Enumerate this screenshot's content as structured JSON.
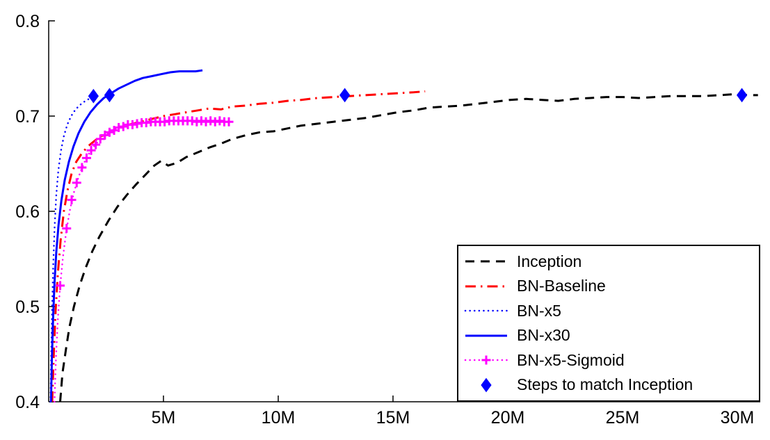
{
  "chart_data": {
    "type": "line",
    "title": "",
    "xlabel": "",
    "ylabel": "",
    "x_units": "millions of training steps",
    "xlim": [
      0,
      31
    ],
    "ylim": [
      0.4,
      0.8
    ],
    "grid": false,
    "background": "#ffffff",
    "axis_color": "#000000",
    "legend_position": "lower right",
    "xticks": [
      {
        "value": 5,
        "label": "5M"
      },
      {
        "value": 10,
        "label": "10M"
      },
      {
        "value": 15,
        "label": "15M"
      },
      {
        "value": 20,
        "label": "20M"
      },
      {
        "value": 25,
        "label": "25M"
      },
      {
        "value": 30,
        "label": "30M"
      }
    ],
    "yticks": [
      {
        "value": 0.4,
        "label": "0.4"
      },
      {
        "value": 0.5,
        "label": "0.5"
      },
      {
        "value": 0.6,
        "label": "0.6"
      },
      {
        "value": 0.7,
        "label": "0.7"
      },
      {
        "value": 0.8,
        "label": "0.8"
      }
    ],
    "series": [
      {
        "name": "Inception",
        "color": "#000000",
        "style": "dashed",
        "line_width": 3,
        "points": [
          [
            0.5,
            0.4
          ],
          [
            0.6,
            0.43
          ],
          [
            0.75,
            0.455
          ],
          [
            0.9,
            0.478
          ],
          [
            1.1,
            0.5
          ],
          [
            1.35,
            0.522
          ],
          [
            1.6,
            0.54
          ],
          [
            1.9,
            0.558
          ],
          [
            2.2,
            0.573
          ],
          [
            2.6,
            0.59
          ],
          [
            3.0,
            0.605
          ],
          [
            3.4,
            0.617
          ],
          [
            3.8,
            0.628
          ],
          [
            4.2,
            0.638
          ],
          [
            4.6,
            0.648
          ],
          [
            4.9,
            0.653
          ],
          [
            5.2,
            0.648
          ],
          [
            5.6,
            0.651
          ],
          [
            6.0,
            0.657
          ],
          [
            6.5,
            0.662
          ],
          [
            7.0,
            0.667
          ],
          [
            7.5,
            0.671
          ],
          [
            8.0,
            0.676
          ],
          [
            8.6,
            0.68
          ],
          [
            9.2,
            0.683
          ],
          [
            9.8,
            0.684
          ],
          [
            10.4,
            0.687
          ],
          [
            11.0,
            0.69
          ],
          [
            11.7,
            0.692
          ],
          [
            12.4,
            0.694
          ],
          [
            13.1,
            0.696
          ],
          [
            13.8,
            0.698
          ],
          [
            14.5,
            0.701
          ],
          [
            15.2,
            0.704
          ],
          [
            15.9,
            0.706
          ],
          [
            16.6,
            0.709
          ],
          [
            17.3,
            0.71
          ],
          [
            18.0,
            0.711
          ],
          [
            18.7,
            0.713
          ],
          [
            19.4,
            0.715
          ],
          [
            20.1,
            0.717
          ],
          [
            20.8,
            0.718
          ],
          [
            21.5,
            0.717
          ],
          [
            22.2,
            0.716
          ],
          [
            22.9,
            0.718
          ],
          [
            23.6,
            0.719
          ],
          [
            24.3,
            0.72
          ],
          [
            25.0,
            0.72
          ],
          [
            25.7,
            0.719
          ],
          [
            26.4,
            0.72
          ],
          [
            27.1,
            0.721
          ],
          [
            27.8,
            0.721
          ],
          [
            28.5,
            0.721
          ],
          [
            29.2,
            0.722
          ],
          [
            29.9,
            0.723
          ],
          [
            30.5,
            0.722
          ],
          [
            30.9,
            0.722
          ]
        ]
      },
      {
        "name": "BN-Baseline",
        "color": "#ff0000",
        "style": "dashdot",
        "line_width": 3,
        "points": [
          [
            0.15,
            0.4
          ],
          [
            0.22,
            0.45
          ],
          [
            0.3,
            0.495
          ],
          [
            0.4,
            0.535
          ],
          [
            0.52,
            0.57
          ],
          [
            0.66,
            0.6
          ],
          [
            0.82,
            0.622
          ],
          [
            1.0,
            0.64
          ],
          [
            1.2,
            0.652
          ],
          [
            1.45,
            0.661
          ],
          [
            1.7,
            0.668
          ],
          [
            2.0,
            0.674
          ],
          [
            2.3,
            0.679
          ],
          [
            2.7,
            0.684
          ],
          [
            3.1,
            0.688
          ],
          [
            3.5,
            0.691
          ],
          [
            4.0,
            0.694
          ],
          [
            4.5,
            0.697
          ],
          [
            5.0,
            0.7
          ],
          [
            5.5,
            0.702
          ],
          [
            6.0,
            0.704
          ],
          [
            6.5,
            0.706
          ],
          [
            7.0,
            0.708
          ],
          [
            7.5,
            0.707
          ],
          [
            8.0,
            0.71
          ],
          [
            8.6,
            0.711
          ],
          [
            9.2,
            0.713
          ],
          [
            9.8,
            0.714
          ],
          [
            10.4,
            0.716
          ],
          [
            11.0,
            0.717
          ],
          [
            11.7,
            0.719
          ],
          [
            12.4,
            0.72
          ],
          [
            13.1,
            0.721
          ],
          [
            13.8,
            0.722
          ],
          [
            14.5,
            0.723
          ],
          [
            15.2,
            0.724
          ],
          [
            15.9,
            0.725
          ],
          [
            16.4,
            0.726
          ]
        ]
      },
      {
        "name": "BN-x5",
        "color": "#0000ff",
        "style": "dotted",
        "line_width": 2.5,
        "points": [
          [
            0.08,
            0.4
          ],
          [
            0.11,
            0.45
          ],
          [
            0.15,
            0.5
          ],
          [
            0.2,
            0.545
          ],
          [
            0.26,
            0.585
          ],
          [
            0.33,
            0.617
          ],
          [
            0.42,
            0.643
          ],
          [
            0.53,
            0.663
          ],
          [
            0.66,
            0.679
          ],
          [
            0.81,
            0.691
          ],
          [
            0.98,
            0.7
          ],
          [
            1.17,
            0.707
          ],
          [
            1.38,
            0.712
          ],
          [
            1.6,
            0.716
          ],
          [
            1.83,
            0.719
          ],
          [
            2.05,
            0.721
          ]
        ]
      },
      {
        "name": "BN-x30",
        "color": "#0000ff",
        "style": "solid",
        "line_width": 3,
        "points": [
          [
            0.1,
            0.4
          ],
          [
            0.14,
            0.445
          ],
          [
            0.19,
            0.487
          ],
          [
            0.25,
            0.524
          ],
          [
            0.33,
            0.557
          ],
          [
            0.43,
            0.586
          ],
          [
            0.55,
            0.611
          ],
          [
            0.7,
            0.633
          ],
          [
            0.88,
            0.652
          ],
          [
            1.08,
            0.668
          ],
          [
            1.3,
            0.682
          ],
          [
            1.55,
            0.694
          ],
          [
            1.82,
            0.704
          ],
          [
            2.1,
            0.712
          ],
          [
            2.4,
            0.719
          ],
          [
            2.72,
            0.724
          ],
          [
            3.05,
            0.729
          ],
          [
            3.4,
            0.733
          ],
          [
            3.75,
            0.737
          ],
          [
            4.1,
            0.74
          ],
          [
            4.5,
            0.742
          ],
          [
            4.9,
            0.744
          ],
          [
            5.3,
            0.746
          ],
          [
            5.7,
            0.747
          ],
          [
            6.1,
            0.747
          ],
          [
            6.4,
            0.747
          ],
          [
            6.7,
            0.748
          ]
        ]
      },
      {
        "name": "BN-x5-Sigmoid",
        "color": "#ff00ff",
        "style": "dotted",
        "line_width": 2.5,
        "marker": "plus",
        "points": [
          [
            0.25,
            0.4
          ],
          [
            0.32,
            0.448
          ],
          [
            0.4,
            0.487
          ],
          [
            0.5,
            0.522
          ],
          [
            0.62,
            0.552
          ],
          [
            0.76,
            0.578
          ],
          [
            0.92,
            0.601
          ],
          [
            1.1,
            0.62
          ],
          [
            1.3,
            0.636
          ],
          [
            1.52,
            0.65
          ],
          [
            1.74,
            0.66
          ],
          [
            1.96,
            0.668
          ],
          [
            2.18,
            0.674
          ],
          [
            2.4,
            0.679
          ],
          [
            2.62,
            0.682
          ],
          [
            2.84,
            0.685
          ],
          [
            3.06,
            0.688
          ],
          [
            3.28,
            0.689
          ],
          [
            3.5,
            0.691
          ],
          [
            3.72,
            0.692
          ],
          [
            3.94,
            0.692
          ],
          [
            4.16,
            0.693
          ],
          [
            4.38,
            0.693
          ],
          [
            4.6,
            0.694
          ],
          [
            4.82,
            0.694
          ],
          [
            5.04,
            0.694
          ],
          [
            5.26,
            0.695
          ],
          [
            5.48,
            0.695
          ],
          [
            5.7,
            0.695
          ],
          [
            5.92,
            0.695
          ],
          [
            6.14,
            0.695
          ],
          [
            6.36,
            0.695
          ],
          [
            6.58,
            0.694
          ],
          [
            6.8,
            0.695
          ],
          [
            7.02,
            0.694
          ],
          [
            7.24,
            0.695
          ],
          [
            7.46,
            0.694
          ],
          [
            7.68,
            0.695
          ],
          [
            7.9,
            0.694
          ]
        ],
        "marker_points": [
          [
            0.5,
            0.522
          ],
          [
            0.78,
            0.582
          ],
          [
            1.0,
            0.612
          ],
          [
            1.22,
            0.63
          ],
          [
            1.45,
            0.646
          ],
          [
            1.65,
            0.656
          ],
          [
            1.85,
            0.664
          ],
          [
            2.05,
            0.67
          ],
          [
            2.25,
            0.676
          ],
          [
            2.45,
            0.68
          ],
          [
            2.65,
            0.683
          ],
          [
            2.85,
            0.685
          ],
          [
            3.05,
            0.688
          ],
          [
            3.25,
            0.689
          ],
          [
            3.45,
            0.691
          ],
          [
            3.65,
            0.691
          ],
          [
            3.85,
            0.692
          ],
          [
            4.05,
            0.693
          ],
          [
            4.25,
            0.693
          ],
          [
            4.45,
            0.694
          ],
          [
            4.65,
            0.694
          ],
          [
            4.85,
            0.694
          ],
          [
            5.05,
            0.694
          ],
          [
            5.25,
            0.695
          ],
          [
            5.45,
            0.695
          ],
          [
            5.65,
            0.695
          ],
          [
            5.85,
            0.695
          ],
          [
            6.05,
            0.695
          ],
          [
            6.25,
            0.695
          ],
          [
            6.45,
            0.694
          ],
          [
            6.65,
            0.695
          ],
          [
            6.85,
            0.694
          ],
          [
            7.05,
            0.695
          ],
          [
            7.25,
            0.694
          ],
          [
            7.45,
            0.695
          ],
          [
            7.65,
            0.694
          ],
          [
            7.85,
            0.694
          ]
        ]
      },
      {
        "name": "Steps to match Inception",
        "color": "#0000ff",
        "style": "none",
        "line_width": 0,
        "marker": "diamond",
        "points": [
          [
            1.95,
            0.721
          ],
          [
            2.65,
            0.722
          ],
          [
            12.9,
            0.722
          ],
          [
            30.2,
            0.722
          ]
        ]
      }
    ]
  }
}
